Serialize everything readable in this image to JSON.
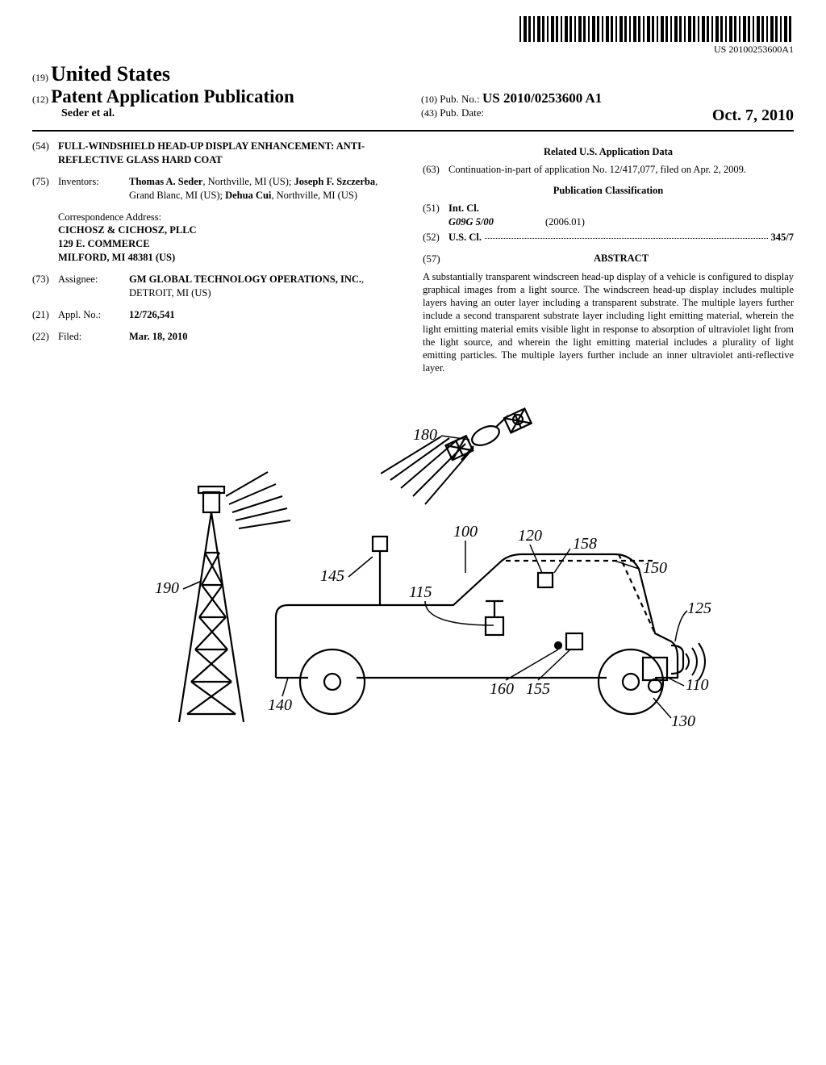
{
  "barcode_text": "US 20100253600A1",
  "header": {
    "code19": "(19)",
    "country": "United States",
    "code12": "(12)",
    "pub_type": "Patent Application Publication",
    "authors": "Seder et al.",
    "code10": "(10)",
    "pub_no_label": "Pub. No.:",
    "pub_no": "US 2010/0253600 A1",
    "code43": "(43)",
    "pub_date_label": "Pub. Date:",
    "pub_date": "Oct. 7, 2010"
  },
  "left": {
    "title": {
      "code": "(54)",
      "text": "FULL-WINDSHIELD HEAD-UP DISPLAY ENHANCEMENT: ANTI-REFLECTIVE GLASS HARD COAT"
    },
    "inventors": {
      "code": "(75)",
      "label": "Inventors:",
      "text_html": "<b>Thomas A. Seder</b>, Northville, MI (US); <b>Joseph F. Szczerba</b>, Grand Blanc, MI (US); <b>Dehua Cui</b>, Northville, MI (US)"
    },
    "correspondence": {
      "label": "Correspondence Address:",
      "line1": "CICHOSZ & CICHOSZ, PLLC",
      "line2": "129 E. COMMERCE",
      "line3": "MILFORD, MI 48381 (US)"
    },
    "assignee": {
      "code": "(73)",
      "label": "Assignee:",
      "text_html": "<b>GM GLOBAL TECHNOLOGY OPERATIONS, INC.</b>, DETROIT, MI (US)"
    },
    "appl_no": {
      "code": "(21)",
      "label": "Appl. No.:",
      "value": "12/726,541"
    },
    "filed": {
      "code": "(22)",
      "label": "Filed:",
      "value": "Mar. 18, 2010"
    }
  },
  "right": {
    "related_heading": "Related U.S. Application Data",
    "continuation": {
      "code": "(63)",
      "text": "Continuation-in-part of application No. 12/417,077, filed on Apr. 2, 2009."
    },
    "classification_heading": "Publication Classification",
    "int_cl": {
      "code": "(51)",
      "label": "Int. Cl.",
      "class": "G09G 5/00",
      "year": "(2006.01)"
    },
    "us_cl": {
      "code": "(52)",
      "label": "U.S. Cl.",
      "value": "345/7"
    },
    "abstract": {
      "code": "(57)",
      "heading": "ABSTRACT",
      "text": "A substantially transparent windscreen head-up display of a vehicle is configured to display graphical images from a light source. The windscreen head-up display includes multiple layers having an outer layer including a transparent substrate. The multiple layers further include a second transparent substrate layer including light emitting material, wherein the light emitting material emits visible light in response to absorption of ultraviolet light from the light source, and wherein the light emitting material includes a plurality of light emitting particles. The multiple layers further include an inner ultraviolet anti-reflective layer."
    }
  },
  "figure": {
    "labels": {
      "l180": "180",
      "l190": "190",
      "l145": "145",
      "l140": "140",
      "l115": "115",
      "l100": "100",
      "l120": "120",
      "l158": "158",
      "l150": "150",
      "l125": "125",
      "l110": "110",
      "l130": "130",
      "l160": "160",
      "l155": "155"
    }
  }
}
